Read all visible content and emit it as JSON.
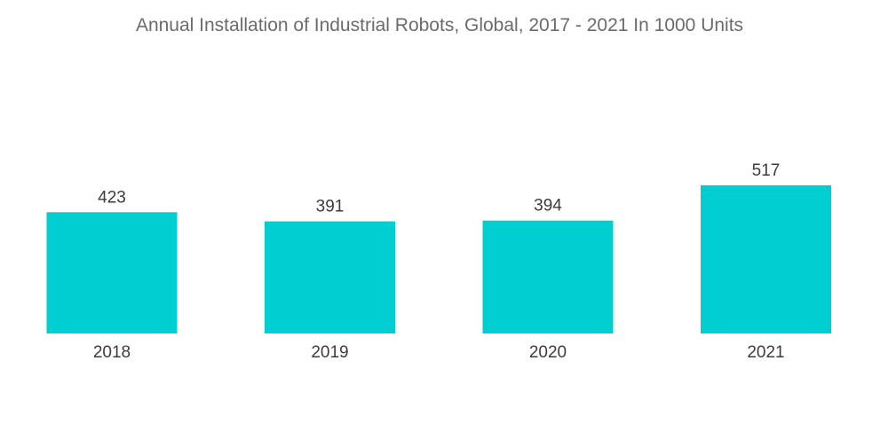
{
  "chart_data": {
    "type": "bar",
    "title": "Annual Installation of Industrial Robots, Global, 2017 - 2021 In 1000 Units",
    "categories": [
      "2018",
      "2019",
      "2020",
      "2021"
    ],
    "values": [
      423,
      391,
      394,
      517
    ],
    "xlabel": "",
    "ylabel": "",
    "ylim": [
      0,
      600
    ],
    "grid": false,
    "legend": "none",
    "bar_color": "#00CED1"
  }
}
